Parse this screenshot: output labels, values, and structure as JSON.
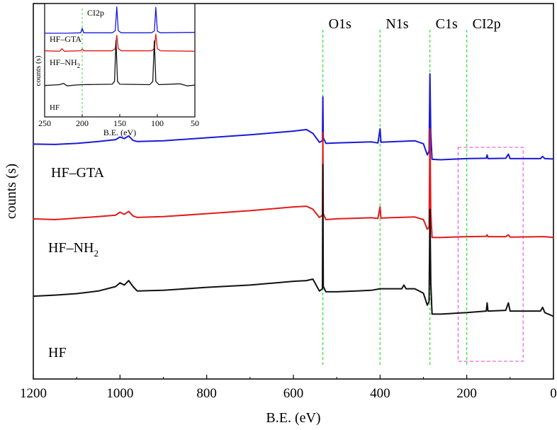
{
  "chart_data": {
    "type": "line",
    "xlabel": "B.E. (eV)",
    "ylabel": "counts (s)",
    "xlim": [
      1200,
      0
    ],
    "x_ticks": [
      1200,
      1000,
      800,
      600,
      400,
      200,
      0
    ],
    "reversed_x": true,
    "guide_lines": [
      {
        "label": "O1s",
        "x": 532
      },
      {
        "label": "N1s",
        "x": 400
      },
      {
        "label": "C1s",
        "x": 285
      },
      {
        "label": "CI2p",
        "x": 200
      }
    ],
    "highlight_box": {
      "x_range": [
        220,
        70
      ],
      "style": "dashed",
      "color": "#e040e0"
    },
    "series": [
      {
        "name": "HF–GTA",
        "color": "#1a1ad8",
        "baseline": 10,
        "points": [
          [
            1200,
            10.15
          ],
          [
            1150,
            10.1
          ],
          [
            1100,
            10.25
          ],
          [
            1050,
            10.5
          ],
          [
            1010,
            10.75
          ],
          [
            1000,
            11.1
          ],
          [
            990,
            10.9
          ],
          [
            980,
            11.25
          ],
          [
            970,
            10.65
          ],
          [
            960,
            10.5
          ],
          [
            900,
            10.6
          ],
          [
            800,
            11.0
          ],
          [
            700,
            11.4
          ],
          [
            600,
            11.9
          ],
          [
            570,
            12.1
          ],
          [
            555,
            11.6
          ],
          [
            540,
            10.4
          ],
          [
            533,
            10.6
          ],
          [
            532,
            16.5
          ],
          [
            531,
            11.0
          ],
          [
            525,
            10.25
          ],
          [
            500,
            10.3
          ],
          [
            420,
            10.45
          ],
          [
            405,
            10.3
          ],
          [
            400,
            12.2
          ],
          [
            398,
            10.4
          ],
          [
            380,
            10.45
          ],
          [
            320,
            10.6
          ],
          [
            300,
            10.2
          ],
          [
            291,
            8.7
          ],
          [
            287,
            9.2
          ],
          [
            285,
            19.6
          ],
          [
            283,
            11.5
          ],
          [
            280,
            8.1
          ],
          [
            260,
            8.05
          ],
          [
            200,
            8.2
          ],
          [
            155,
            8.25
          ],
          [
            153,
            8.7
          ],
          [
            151,
            8.2
          ],
          [
            110,
            8.25
          ],
          [
            104,
            8.8
          ],
          [
            100,
            8.2
          ],
          [
            30,
            8.2
          ],
          [
            25,
            8.5
          ],
          [
            20,
            8.2
          ],
          [
            0,
            8.15
          ]
        ]
      },
      {
        "name": "HF–NH2",
        "color": "#e41a1a",
        "baseline": 0,
        "points": [
          [
            1200,
            0.1
          ],
          [
            1150,
            0.0
          ],
          [
            1100,
            0.2
          ],
          [
            1050,
            0.4
          ],
          [
            1010,
            0.6
          ],
          [
            1000,
            1.0
          ],
          [
            990,
            0.7
          ],
          [
            980,
            1.1
          ],
          [
            970,
            0.5
          ],
          [
            960,
            0.3
          ],
          [
            900,
            0.4
          ],
          [
            800,
            0.8
          ],
          [
            700,
            1.2
          ],
          [
            600,
            1.7
          ],
          [
            570,
            1.8
          ],
          [
            555,
            1.4
          ],
          [
            540,
            0.3
          ],
          [
            533,
            0.6
          ],
          [
            532,
            11.7
          ],
          [
            531,
            0.8
          ],
          [
            525,
            0.0
          ],
          [
            500,
            0.1
          ],
          [
            420,
            0.25
          ],
          [
            405,
            0.15
          ],
          [
            400,
            1.7
          ],
          [
            398,
            0.2
          ],
          [
            380,
            0.25
          ],
          [
            320,
            0.35
          ],
          [
            300,
            0.0
          ],
          [
            291,
            -1.3
          ],
          [
            287,
            -1.0
          ],
          [
            285,
            12.2
          ],
          [
            283,
            1.0
          ],
          [
            280,
            -2.4
          ],
          [
            260,
            -2.4
          ],
          [
            200,
            -2.3
          ],
          [
            155,
            -2.25
          ],
          [
            153,
            -2.05
          ],
          [
            151,
            -2.3
          ],
          [
            110,
            -2.3
          ],
          [
            104,
            -2.05
          ],
          [
            100,
            -2.35
          ],
          [
            20,
            -2.3
          ],
          [
            0,
            -2.4
          ]
        ]
      },
      {
        "name": "HF",
        "color": "#111111",
        "baseline": -10,
        "points": [
          [
            1200,
            -10.3
          ],
          [
            1150,
            -10.15
          ],
          [
            1100,
            -9.95
          ],
          [
            1050,
            -9.6
          ],
          [
            1010,
            -9.0
          ],
          [
            1000,
            -8.5
          ],
          [
            990,
            -8.8
          ],
          [
            980,
            -8.2
          ],
          [
            970,
            -9.0
          ],
          [
            960,
            -9.6
          ],
          [
            900,
            -9.5
          ],
          [
            800,
            -9.1
          ],
          [
            700,
            -8.8
          ],
          [
            600,
            -8.3
          ],
          [
            570,
            -8.2
          ],
          [
            555,
            -8.0
          ],
          [
            540,
            -9.6
          ],
          [
            533,
            -9.3
          ],
          [
            532,
            7.4
          ],
          [
            531,
            -9.0
          ],
          [
            525,
            -9.7
          ],
          [
            500,
            -9.7
          ],
          [
            420,
            -9.5
          ],
          [
            400,
            -9.3
          ],
          [
            350,
            -9.3
          ],
          [
            345,
            -8.8
          ],
          [
            340,
            -9.3
          ],
          [
            320,
            -9.3
          ],
          [
            300,
            -9.9
          ],
          [
            291,
            -11.5
          ],
          [
            287,
            -11.0
          ],
          [
            285,
            1.4
          ],
          [
            283,
            -8.5
          ],
          [
            280,
            -12.7
          ],
          [
            260,
            -12.7
          ],
          [
            200,
            -12.5
          ],
          [
            155,
            -12.3
          ],
          [
            153,
            -11.2
          ],
          [
            151,
            -12.3
          ],
          [
            110,
            -12.2
          ],
          [
            104,
            -11.2
          ],
          [
            100,
            -12.3
          ],
          [
            30,
            -12.3
          ],
          [
            25,
            -11.8
          ],
          [
            20,
            -12.5
          ],
          [
            0,
            -13.0
          ]
        ]
      }
    ],
    "inset": {
      "xlabel": "B.E. (eV)",
      "ylabel": "counts (s)",
      "xlim": [
        250,
        50
      ],
      "x_ticks": [
        250,
        200,
        150,
        100,
        50
      ],
      "guide_line": {
        "label": "CI2p",
        "x": 200
      },
      "series": [
        {
          "name": "HF–GTA",
          "color": "#1a1ad8",
          "points": [
            [
              250,
              9.0
            ],
            [
              220,
              9.0
            ],
            [
              202,
              9.1
            ],
            [
              200,
              10.2
            ],
            [
              198,
              9.1
            ],
            [
              160,
              9.1
            ],
            [
              156,
              9.6
            ],
            [
              154,
              15.3
            ],
            [
              152,
              9.6
            ],
            [
              148,
              9.1
            ],
            [
              108,
              9.1
            ],
            [
              104,
              9.5
            ],
            [
              102,
              15.2
            ],
            [
              100,
              9.5
            ],
            [
              96,
              9.1
            ],
            [
              50,
              9.2
            ]
          ]
        },
        {
          "name": "HF–NH2",
          "color": "#e41a1a",
          "points": [
            [
              250,
              4.8
            ],
            [
              230,
              4.7
            ],
            [
              227,
              5.3
            ],
            [
              224,
              4.7
            ],
            [
              202,
              4.8
            ],
            [
              200,
              5.2
            ],
            [
              198,
              4.8
            ],
            [
              160,
              4.8
            ],
            [
              156,
              5.3
            ],
            [
              154,
              8.5
            ],
            [
              152,
              5.3
            ],
            [
              148,
              4.8
            ],
            [
              108,
              4.8
            ],
            [
              104,
              5.3
            ],
            [
              102,
              8.8
            ],
            [
              100,
              5.3
            ],
            [
              96,
              4.8
            ],
            [
              50,
              4.7
            ]
          ]
        },
        {
          "name": "HF",
          "color": "#111111",
          "points": [
            [
              250,
              -3.5
            ],
            [
              240,
              -3.4
            ],
            [
              230,
              -3.3
            ],
            [
              225,
              -3.0
            ],
            [
              220,
              -3.6
            ],
            [
              210,
              -3.4
            ],
            [
              200,
              -3.3
            ],
            [
              160,
              -3.2
            ],
            [
              157,
              -2.5
            ],
            [
              155,
              7.2
            ],
            [
              153,
              -2.5
            ],
            [
              150,
              -3.2
            ],
            [
              110,
              -3.3
            ],
            [
              106,
              -2.5
            ],
            [
              104,
              7.2
            ],
            [
              102,
              -2.5
            ],
            [
              98,
              -3.3
            ],
            [
              70,
              -3.1
            ],
            [
              60,
              -3.6
            ],
            [
              50,
              -3.4
            ]
          ]
        }
      ]
    }
  },
  "labels": {
    "main_series_labels": [
      "HF–GTA",
      "HF–NH",
      "HF"
    ],
    "main_series_sub": "2",
    "inset_series_labels": [
      "HF–GTA",
      "HF–NH",
      "HF"
    ],
    "inset_series_sub": "2"
  }
}
